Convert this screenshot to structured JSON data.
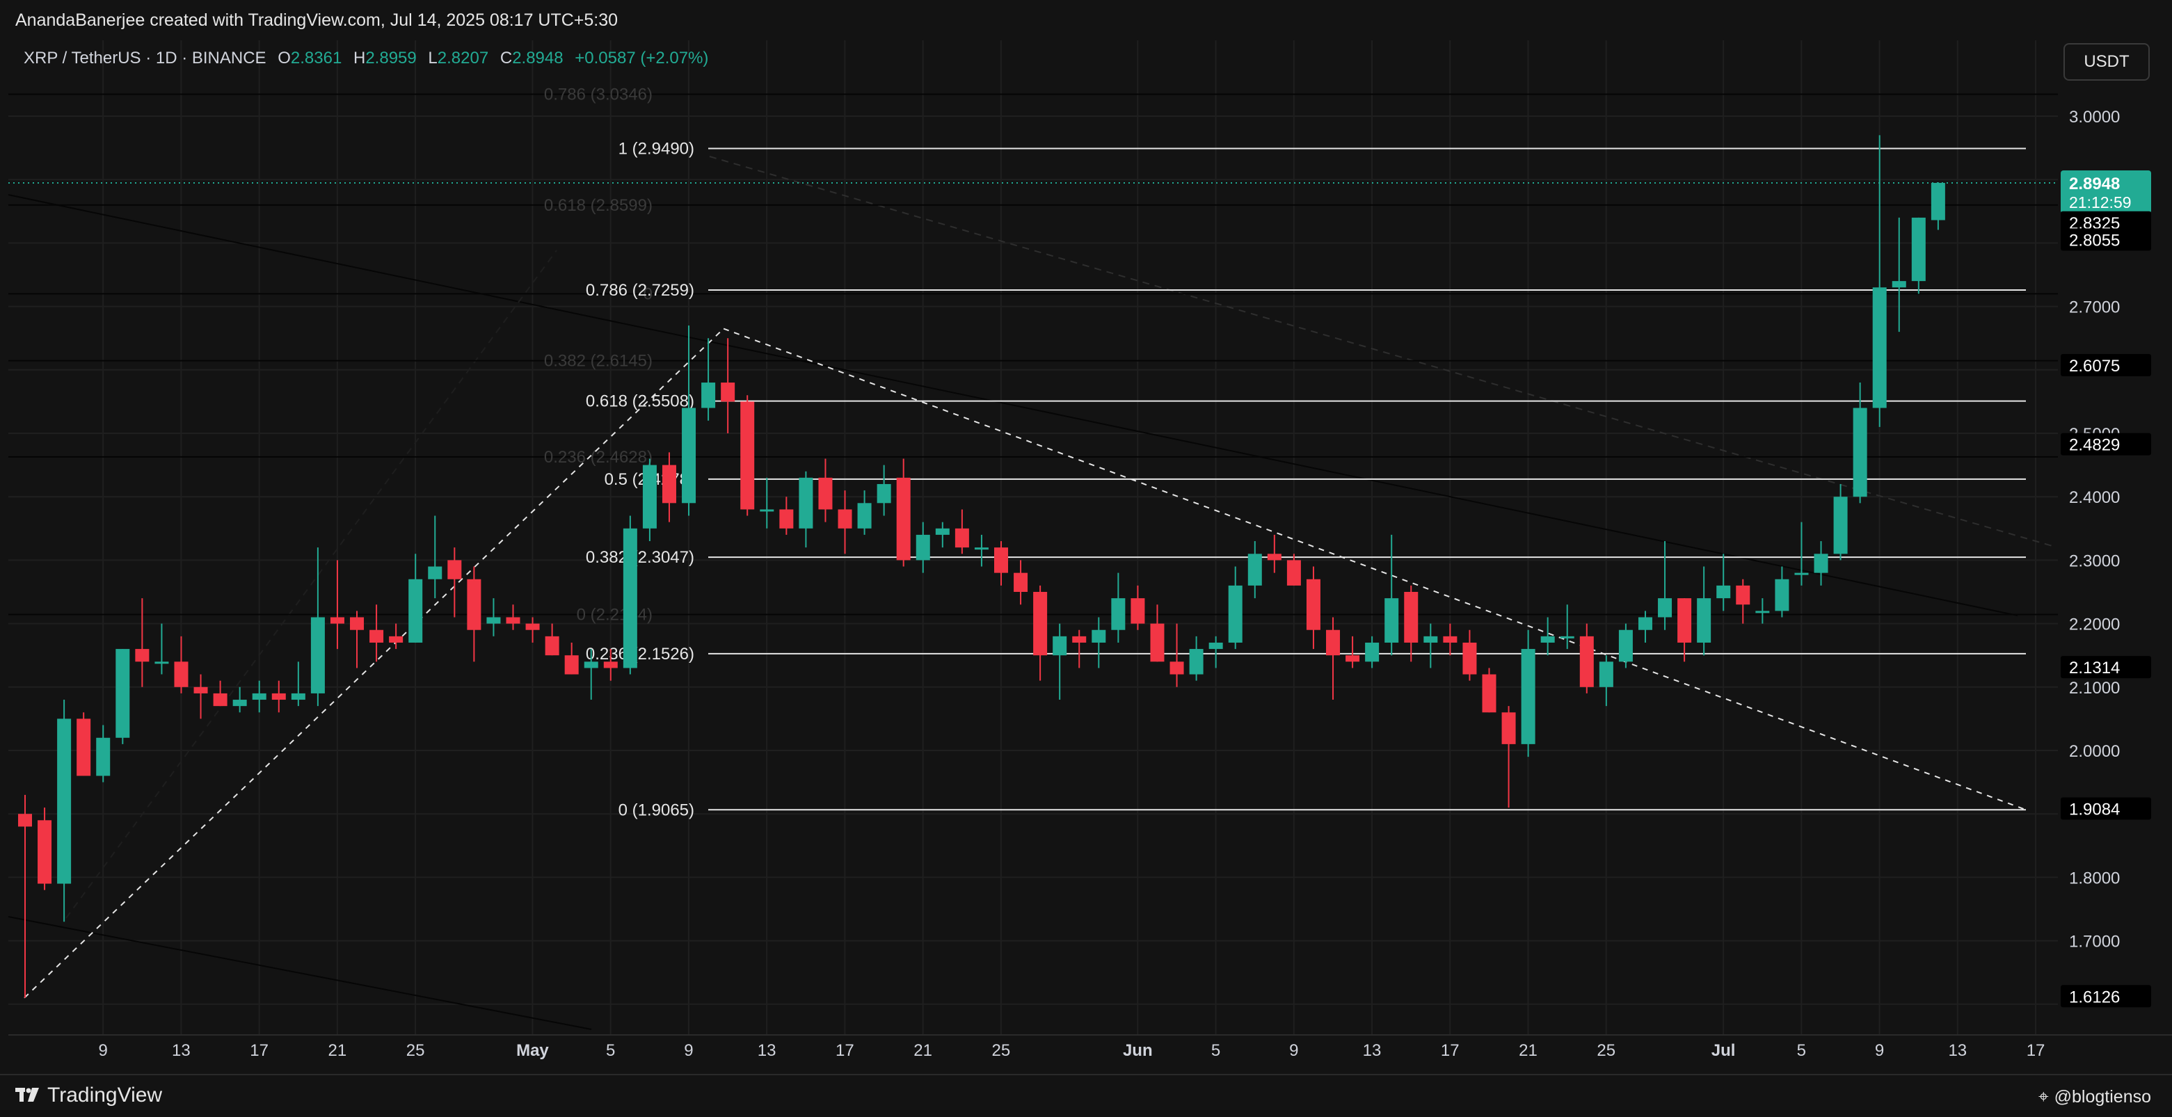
{
  "header": {
    "attribution": "AnandaBanerjee created with TradingView.com, Jul 14, 2025 08:17 UTC+5:30"
  },
  "legend": {
    "symbol": "XRP / TetherUS · 1D · BINANCE",
    "open_label": "O",
    "open": "2.8361",
    "high_label": "H",
    "high": "2.8959",
    "low_label": "L",
    "low": "2.8207",
    "close_label": "C",
    "close": "2.8948",
    "change": "+0.0587 (+2.07%)"
  },
  "currency_button": "USDT",
  "footer": {
    "brand": "TradingView",
    "handle": "@blogtienso",
    "brand_icon": "tradingview-logo-icon",
    "handle_icon": "user-handle-icon"
  },
  "colors": {
    "up": "#22ab94",
    "down": "#f23645",
    "background": "#131313",
    "grid": "#1f1f1f",
    "fib_line": "#e6e6e6",
    "axis_text": "#d1d4dc"
  },
  "chart_data": {
    "type": "candlestick",
    "symbol": "XRP / TetherUS",
    "interval": "1D",
    "exchange": "BINANCE",
    "ylim": [
      1.58,
      3.17
    ],
    "y_ticks": [
      "1.7000",
      "1.8000",
      "2.0000",
      "2.1000",
      "2.2000",
      "2.3000",
      "2.4000",
      "2.5000",
      "2.7000",
      "3.0000"
    ],
    "x_ticks": [
      "9",
      "13",
      "17",
      "21",
      "25",
      "May",
      "5",
      "9",
      "13",
      "17",
      "21",
      "25",
      "Jun",
      "5",
      "9",
      "13",
      "17",
      "21",
      "25",
      "Jul",
      "5",
      "9",
      "13",
      "17"
    ],
    "fib_levels_current": [
      {
        "label": "1 (2.9490)",
        "value": 2.949
      },
      {
        "label": "0.786 (2.7259)",
        "value": 2.7259
      },
      {
        "label": "0.618 (2.5508)",
        "value": 2.5508
      },
      {
        "label": "0.5 (2.4278)",
        "value": 2.4278
      },
      {
        "label": "0.382 (2.3047)",
        "value": 2.3047
      },
      {
        "label": "0.236 (2.1526)",
        "value": 2.1526
      },
      {
        "label": "0 (1.9065)",
        "value": 1.9065
      }
    ],
    "fib_levels_faded": [
      {
        "label": "0.786 (3.0346)",
        "value": 3.0346
      },
      {
        "label": "0.618 (2.8599)",
        "value": 2.8599
      },
      {
        "label": "0",
        "value": 2.72
      },
      {
        "label": "0.382 (2.6145)",
        "value": 2.6145
      },
      {
        "label": "0.236 (2.4628)",
        "value": 2.4628
      },
      {
        "label": "0 (2.2144)",
        "value": 2.2144
      }
    ],
    "price_labels": [
      {
        "value": 2.8948,
        "text": "2.8948",
        "sub": "21:12:59",
        "style": "current"
      },
      {
        "value": 2.8325,
        "text": "2.8325",
        "style": "marker"
      },
      {
        "value": 2.8055,
        "text": "2.8055",
        "style": "marker"
      },
      {
        "value": 2.6075,
        "text": "2.6075",
        "style": "marker"
      },
      {
        "value": 2.4829,
        "text": "2.4829",
        "style": "marker"
      },
      {
        "value": 2.1314,
        "text": "2.1314",
        "style": "marker"
      },
      {
        "value": 1.9084,
        "text": "1.9084",
        "style": "marker"
      },
      {
        "value": 1.6126,
        "text": "1.6126",
        "style": "marker"
      }
    ],
    "candles": [
      {
        "date": "Apr 7",
        "o": 1.9,
        "h": 1.93,
        "l": 1.61,
        "c": 1.88
      },
      {
        "date": "Apr 8",
        "o": 1.89,
        "h": 1.91,
        "l": 1.78,
        "c": 1.79
      },
      {
        "date": "Apr 9",
        "o": 1.79,
        "h": 2.08,
        "l": 1.73,
        "c": 2.05
      },
      {
        "date": "Apr 10",
        "o": 2.05,
        "h": 2.06,
        "l": 1.96,
        "c": 1.96
      },
      {
        "date": "Apr 11",
        "o": 1.96,
        "h": 2.04,
        "l": 1.95,
        "c": 2.02
      },
      {
        "date": "Apr 12",
        "o": 2.02,
        "h": 2.16,
        "l": 2.01,
        "c": 2.16
      },
      {
        "date": "Apr 13",
        "o": 2.16,
        "h": 2.24,
        "l": 2.1,
        "c": 2.14
      },
      {
        "date": "Apr 14",
        "o": 2.14,
        "h": 2.2,
        "l": 2.12,
        "c": 2.14
      },
      {
        "date": "Apr 15",
        "o": 2.14,
        "h": 2.18,
        "l": 2.09,
        "c": 2.1
      },
      {
        "date": "Apr 16",
        "o": 2.1,
        "h": 2.12,
        "l": 2.05,
        "c": 2.09
      },
      {
        "date": "Apr 17",
        "o": 2.09,
        "h": 2.11,
        "l": 2.07,
        "c": 2.07
      },
      {
        "date": "Apr 18",
        "o": 2.07,
        "h": 2.1,
        "l": 2.06,
        "c": 2.08
      },
      {
        "date": "Apr 19",
        "o": 2.08,
        "h": 2.11,
        "l": 2.06,
        "c": 2.09
      },
      {
        "date": "Apr 20",
        "o": 2.09,
        "h": 2.11,
        "l": 2.06,
        "c": 2.08
      },
      {
        "date": "Apr 21",
        "o": 2.08,
        "h": 2.14,
        "l": 2.07,
        "c": 2.09
      },
      {
        "date": "Apr 22",
        "o": 2.09,
        "h": 2.32,
        "l": 2.07,
        "c": 2.21
      },
      {
        "date": "Apr 23",
        "o": 2.21,
        "h": 2.3,
        "l": 2.16,
        "c": 2.2
      },
      {
        "date": "Apr 24",
        "o": 2.21,
        "h": 2.22,
        "l": 2.13,
        "c": 2.19
      },
      {
        "date": "Apr 25",
        "o": 2.19,
        "h": 2.23,
        "l": 2.14,
        "c": 2.17
      },
      {
        "date": "Apr 26",
        "o": 2.18,
        "h": 2.2,
        "l": 2.16,
        "c": 2.17
      },
      {
        "date": "Apr 27",
        "o": 2.17,
        "h": 2.31,
        "l": 2.17,
        "c": 2.27
      },
      {
        "date": "Apr 28",
        "o": 2.27,
        "h": 2.37,
        "l": 2.24,
        "c": 2.29
      },
      {
        "date": "Apr 29",
        "o": 2.3,
        "h": 2.32,
        "l": 2.21,
        "c": 2.27
      },
      {
        "date": "Apr 30",
        "o": 2.27,
        "h": 2.29,
        "l": 2.14,
        "c": 2.19
      },
      {
        "date": "May 1",
        "o": 2.2,
        "h": 2.24,
        "l": 2.18,
        "c": 2.21
      },
      {
        "date": "May 2",
        "o": 2.21,
        "h": 2.23,
        "l": 2.19,
        "c": 2.2
      },
      {
        "date": "May 3",
        "o": 2.2,
        "h": 2.21,
        "l": 2.17,
        "c": 2.19
      },
      {
        "date": "May 4",
        "o": 2.18,
        "h": 2.2,
        "l": 2.15,
        "c": 2.15
      },
      {
        "date": "May 5",
        "o": 2.15,
        "h": 2.17,
        "l": 2.12,
        "c": 2.12
      },
      {
        "date": "May 6",
        "o": 2.13,
        "h": 2.16,
        "l": 2.08,
        "c": 2.14
      },
      {
        "date": "May 7",
        "o": 2.14,
        "h": 2.16,
        "l": 2.11,
        "c": 2.13
      },
      {
        "date": "May 8",
        "o": 2.13,
        "h": 2.37,
        "l": 2.12,
        "c": 2.35
      },
      {
        "date": "May 9",
        "o": 2.35,
        "h": 2.46,
        "l": 2.33,
        "c": 2.45
      },
      {
        "date": "May 10",
        "o": 2.45,
        "h": 2.47,
        "l": 2.36,
        "c": 2.39
      },
      {
        "date": "May 11",
        "o": 2.39,
        "h": 2.67,
        "l": 2.37,
        "c": 2.54
      },
      {
        "date": "May 12",
        "o": 2.54,
        "h": 2.65,
        "l": 2.52,
        "c": 2.58
      },
      {
        "date": "May 13",
        "o": 2.58,
        "h": 2.65,
        "l": 2.5,
        "c": 2.55
      },
      {
        "date": "May 14",
        "o": 2.55,
        "h": 2.56,
        "l": 2.37,
        "c": 2.38
      },
      {
        "date": "May 15",
        "o": 2.38,
        "h": 2.43,
        "l": 2.35,
        "c": 2.38
      },
      {
        "date": "May 16",
        "o": 2.38,
        "h": 2.4,
        "l": 2.34,
        "c": 2.35
      },
      {
        "date": "May 17",
        "o": 2.35,
        "h": 2.44,
        "l": 2.32,
        "c": 2.43
      },
      {
        "date": "May 18",
        "o": 2.43,
        "h": 2.46,
        "l": 2.36,
        "c": 2.38
      },
      {
        "date": "May 19",
        "o": 2.38,
        "h": 2.41,
        "l": 2.31,
        "c": 2.35
      },
      {
        "date": "May 20",
        "o": 2.35,
        "h": 2.41,
        "l": 2.34,
        "c": 2.39
      },
      {
        "date": "May 21",
        "o": 2.39,
        "h": 2.45,
        "l": 2.37,
        "c": 2.42
      },
      {
        "date": "May 22",
        "o": 2.43,
        "h": 2.46,
        "l": 2.29,
        "c": 2.3
      },
      {
        "date": "May 23",
        "o": 2.3,
        "h": 2.36,
        "l": 2.28,
        "c": 2.34
      },
      {
        "date": "May 24",
        "o": 2.34,
        "h": 2.36,
        "l": 2.32,
        "c": 2.35
      },
      {
        "date": "May 25",
        "o": 2.35,
        "h": 2.38,
        "l": 2.31,
        "c": 2.32
      },
      {
        "date": "May 26",
        "o": 2.32,
        "h": 2.34,
        "l": 2.29,
        "c": 2.32
      },
      {
        "date": "May 27",
        "o": 2.32,
        "h": 2.33,
        "l": 2.26,
        "c": 2.28
      },
      {
        "date": "May 28",
        "o": 2.28,
        "h": 2.3,
        "l": 2.23,
        "c": 2.25
      },
      {
        "date": "May 29",
        "o": 2.25,
        "h": 2.26,
        "l": 2.11,
        "c": 2.15
      },
      {
        "date": "May 30",
        "o": 2.15,
        "h": 2.2,
        "l": 2.08,
        "c": 2.18
      },
      {
        "date": "May 31",
        "o": 2.18,
        "h": 2.19,
        "l": 2.13,
        "c": 2.17
      },
      {
        "date": "Jun 1",
        "o": 2.17,
        "h": 2.21,
        "l": 2.13,
        "c": 2.19
      },
      {
        "date": "Jun 2",
        "o": 2.19,
        "h": 2.28,
        "l": 2.17,
        "c": 2.24
      },
      {
        "date": "Jun 3",
        "o": 2.24,
        "h": 2.26,
        "l": 2.19,
        "c": 2.2
      },
      {
        "date": "Jun 4",
        "o": 2.2,
        "h": 2.23,
        "l": 2.14,
        "c": 2.14
      },
      {
        "date": "Jun 5",
        "o": 2.14,
        "h": 2.2,
        "l": 2.1,
        "c": 2.12
      },
      {
        "date": "Jun 6",
        "o": 2.12,
        "h": 2.18,
        "l": 2.11,
        "c": 2.16
      },
      {
        "date": "Jun 7",
        "o": 2.16,
        "h": 2.18,
        "l": 2.13,
        "c": 2.17
      },
      {
        "date": "Jun 8",
        "o": 2.17,
        "h": 2.29,
        "l": 2.16,
        "c": 2.26
      },
      {
        "date": "Jun 9",
        "o": 2.26,
        "h": 2.33,
        "l": 2.24,
        "c": 2.31
      },
      {
        "date": "Jun 10",
        "o": 2.31,
        "h": 2.34,
        "l": 2.28,
        "c": 2.3
      },
      {
        "date": "Jun 11",
        "o": 2.3,
        "h": 2.31,
        "l": 2.26,
        "c": 2.26
      },
      {
        "date": "Jun 12",
        "o": 2.27,
        "h": 2.29,
        "l": 2.16,
        "c": 2.19
      },
      {
        "date": "Jun 13",
        "o": 2.19,
        "h": 2.21,
        "l": 2.08,
        "c": 2.15
      },
      {
        "date": "Jun 14",
        "o": 2.15,
        "h": 2.18,
        "l": 2.13,
        "c": 2.14
      },
      {
        "date": "Jun 15",
        "o": 2.14,
        "h": 2.18,
        "l": 2.13,
        "c": 2.17
      },
      {
        "date": "Jun 16",
        "o": 2.17,
        "h": 2.34,
        "l": 2.15,
        "c": 2.24
      },
      {
        "date": "Jun 17",
        "o": 2.25,
        "h": 2.26,
        "l": 2.14,
        "c": 2.17
      },
      {
        "date": "Jun 18",
        "o": 2.17,
        "h": 2.2,
        "l": 2.13,
        "c": 2.18
      },
      {
        "date": "Jun 19",
        "o": 2.18,
        "h": 2.2,
        "l": 2.15,
        "c": 2.17
      },
      {
        "date": "Jun 20",
        "o": 2.17,
        "h": 2.19,
        "l": 2.11,
        "c": 2.12
      },
      {
        "date": "Jun 21",
        "o": 2.12,
        "h": 2.13,
        "l": 2.06,
        "c": 2.06
      },
      {
        "date": "Jun 22",
        "o": 2.06,
        "h": 2.07,
        "l": 1.91,
        "c": 2.01
      },
      {
        "date": "Jun 23",
        "o": 2.01,
        "h": 2.19,
        "l": 1.99,
        "c": 2.16
      },
      {
        "date": "Jun 24",
        "o": 2.17,
        "h": 2.21,
        "l": 2.15,
        "c": 2.18
      },
      {
        "date": "Jun 25",
        "o": 2.18,
        "h": 2.23,
        "l": 2.16,
        "c": 2.18
      },
      {
        "date": "Jun 26",
        "o": 2.18,
        "h": 2.2,
        "l": 2.09,
        "c": 2.1
      },
      {
        "date": "Jun 27",
        "o": 2.1,
        "h": 2.15,
        "l": 2.07,
        "c": 2.14
      },
      {
        "date": "Jun 28",
        "o": 2.14,
        "h": 2.2,
        "l": 2.13,
        "c": 2.19
      },
      {
        "date": "Jun 29",
        "o": 2.19,
        "h": 2.22,
        "l": 2.17,
        "c": 2.21
      },
      {
        "date": "Jun 30",
        "o": 2.21,
        "h": 2.33,
        "l": 2.19,
        "c": 2.24
      },
      {
        "date": "Jul 1",
        "o": 2.24,
        "h": 2.24,
        "l": 2.14,
        "c": 2.17
      },
      {
        "date": "Jul 2",
        "o": 2.17,
        "h": 2.29,
        "l": 2.15,
        "c": 2.24
      },
      {
        "date": "Jul 3",
        "o": 2.24,
        "h": 2.31,
        "l": 2.22,
        "c": 2.26
      },
      {
        "date": "Jul 4",
        "o": 2.26,
        "h": 2.27,
        "l": 2.2,
        "c": 2.23
      },
      {
        "date": "Jul 5",
        "o": 2.22,
        "h": 2.24,
        "l": 2.2,
        "c": 2.22
      },
      {
        "date": "Jul 6",
        "o": 2.22,
        "h": 2.29,
        "l": 2.21,
        "c": 2.27
      },
      {
        "date": "Jul 7",
        "o": 2.28,
        "h": 2.36,
        "l": 2.26,
        "c": 2.28
      },
      {
        "date": "Jul 8",
        "o": 2.28,
        "h": 2.33,
        "l": 2.26,
        "c": 2.31
      },
      {
        "date": "Jul 9",
        "o": 2.31,
        "h": 2.42,
        "l": 2.3,
        "c": 2.4
      },
      {
        "date": "Jul 10",
        "o": 2.4,
        "h": 2.58,
        "l": 2.39,
        "c": 2.54
      },
      {
        "date": "Jul 11",
        "o": 2.54,
        "h": 2.97,
        "l": 2.51,
        "c": 2.73
      },
      {
        "date": "Jul 12",
        "o": 2.73,
        "h": 2.84,
        "l": 2.66,
        "c": 2.74
      },
      {
        "date": "Jul 13",
        "o": 2.74,
        "h": 2.84,
        "l": 2.72,
        "c": 2.84
      },
      {
        "date": "Jul 14",
        "o": 2.8361,
        "h": 2.8959,
        "l": 2.8207,
        "c": 2.8948
      }
    ]
  }
}
